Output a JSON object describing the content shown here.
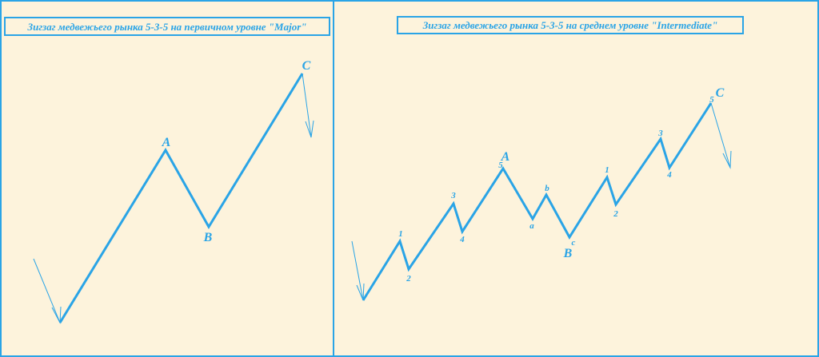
{
  "panels": [
    {
      "title": "Зигзаг медвежьего рынка 5-3-5 на первичном уровне \"Major\"",
      "labels": [
        "A",
        "B",
        "C"
      ]
    },
    {
      "title": "Зигзаг медвежьего рынка 5-3-5 на среднем уровне \"Intermediate\"",
      "labels": [
        "1",
        "2",
        "3",
        "4",
        "5",
        "A",
        "a",
        "b",
        "c",
        "B",
        "1",
        "2",
        "3",
        "4",
        "5",
        "C"
      ]
    }
  ]
}
